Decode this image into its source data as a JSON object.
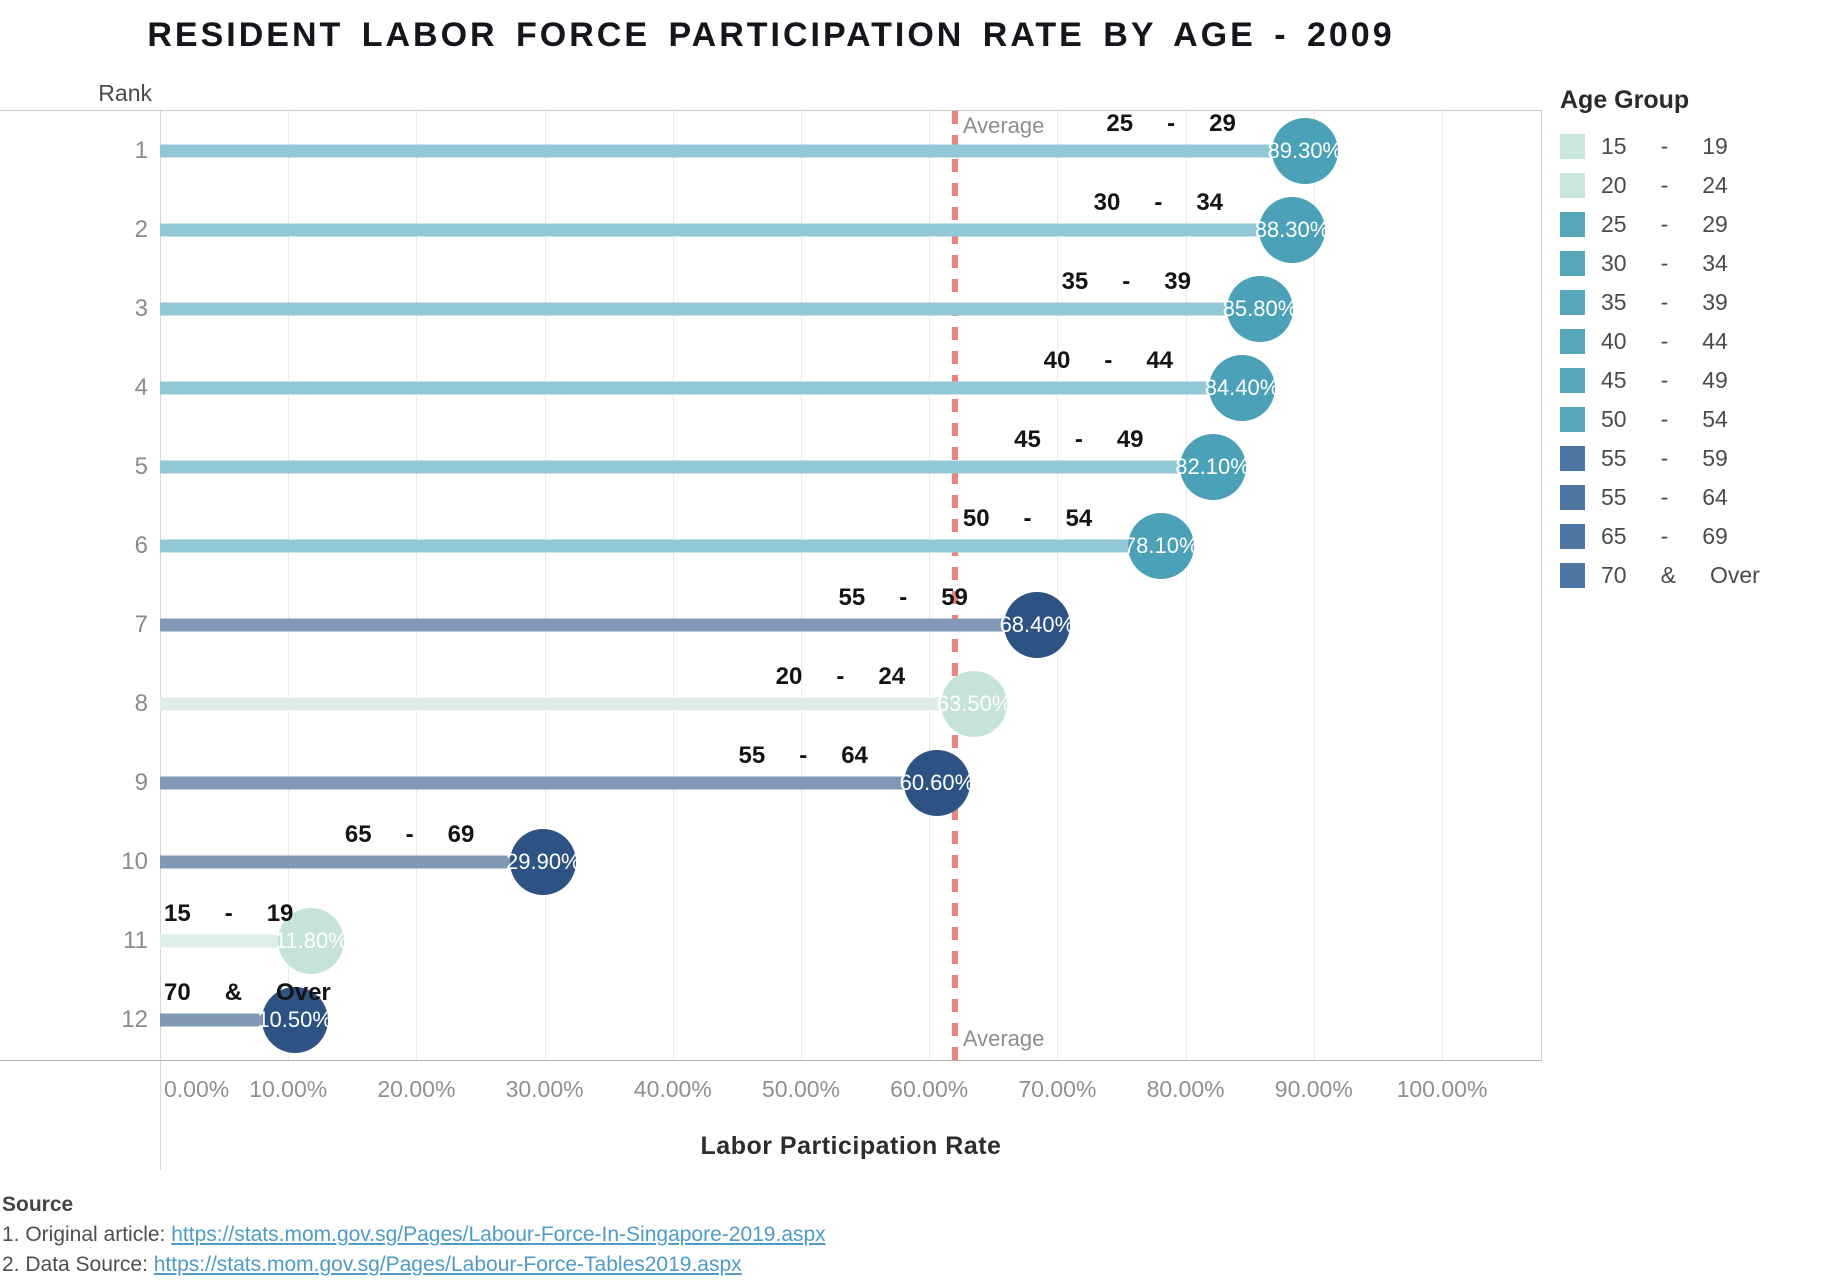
{
  "title": "RESIDENT LABOR FORCE PARTICIPATION RATE BY AGE - 2009",
  "y_axis_title": "Rank",
  "x_axis_title": "Labor Participation Rate",
  "average": {
    "label": "Average",
    "value_pct": 62.0
  },
  "x_ticks": [
    "0.00%",
    "10.00%",
    "20.00%",
    "30.00%",
    "40.00%",
    "50.00%",
    "60.00%",
    "70.00%",
    "80.00%",
    "90.00%",
    "100.00%"
  ],
  "colors": {
    "teal": {
      "circle": "#4ba1b8",
      "bar": "#92c7d5",
      "legend": "#57a7bb"
    },
    "navy": {
      "circle": "#2d5385",
      "bar": "#8298b6",
      "legend": "#4d77a2"
    },
    "mint": {
      "circle": "#c6e3d9",
      "bar": "#dceee7",
      "legend": "#c9e6dc"
    },
    "average_line": "#ef837b"
  },
  "rows": [
    {
      "rank": "1",
      "age": [
        "25",
        "-",
        "29"
      ],
      "value": 89.3,
      "value_label": "89.30%",
      "group": "teal"
    },
    {
      "rank": "2",
      "age": [
        "30",
        "-",
        "34"
      ],
      "value": 88.3,
      "value_label": "88.30%",
      "group": "teal"
    },
    {
      "rank": "3",
      "age": [
        "35",
        "-",
        "39"
      ],
      "value": 85.8,
      "value_label": "85.80%",
      "group": "teal"
    },
    {
      "rank": "4",
      "age": [
        "40",
        "-",
        "44"
      ],
      "value": 84.4,
      "value_label": "84.40%",
      "group": "teal"
    },
    {
      "rank": "5",
      "age": [
        "45",
        "-",
        "49"
      ],
      "value": 82.1,
      "value_label": "82.10%",
      "group": "teal"
    },
    {
      "rank": "6",
      "age": [
        "50",
        "-",
        "54"
      ],
      "value": 78.1,
      "value_label": "78.10%",
      "group": "teal"
    },
    {
      "rank": "7",
      "age": [
        "55",
        "-",
        "59"
      ],
      "value": 68.4,
      "value_label": "68.40%",
      "group": "navy"
    },
    {
      "rank": "8",
      "age": [
        "20",
        "-",
        "24"
      ],
      "value": 63.5,
      "value_label": "63.50%",
      "group": "mint"
    },
    {
      "rank": "9",
      "age": [
        "55",
        "-",
        "64"
      ],
      "value": 60.6,
      "value_label": "60.60%",
      "group": "navy"
    },
    {
      "rank": "10",
      "age": [
        "65",
        "-",
        "69"
      ],
      "value": 29.9,
      "value_label": "29.90%",
      "group": "navy"
    },
    {
      "rank": "11",
      "age": [
        "15",
        "-",
        "19"
      ],
      "value": 11.8,
      "value_label": "11.80%",
      "group": "mint"
    },
    {
      "rank": "12",
      "age": [
        "70",
        "&",
        "Over"
      ],
      "value": 10.5,
      "value_label": "10.50%",
      "group": "navy"
    }
  ],
  "legend": {
    "title": "Age Group",
    "items": [
      {
        "label": [
          "15",
          "-",
          "19"
        ],
        "group": "mint"
      },
      {
        "label": [
          "20",
          "-",
          "24"
        ],
        "group": "mint"
      },
      {
        "label": [
          "25",
          "-",
          "29"
        ],
        "group": "teal"
      },
      {
        "label": [
          "30",
          "-",
          "34"
        ],
        "group": "teal"
      },
      {
        "label": [
          "35",
          "-",
          "39"
        ],
        "group": "teal"
      },
      {
        "label": [
          "40",
          "-",
          "44"
        ],
        "group": "teal"
      },
      {
        "label": [
          "45",
          "-",
          "49"
        ],
        "group": "teal"
      },
      {
        "label": [
          "50",
          "-",
          "54"
        ],
        "group": "teal"
      },
      {
        "label": [
          "55",
          "-",
          "59"
        ],
        "group": "navy"
      },
      {
        "label": [
          "55",
          "-",
          "64"
        ],
        "group": "navy"
      },
      {
        "label": [
          "65",
          "-",
          "69"
        ],
        "group": "navy"
      },
      {
        "label": [
          "70",
          "&",
          "Over"
        ],
        "group": "navy"
      }
    ]
  },
  "source": {
    "heading": "Source",
    "items": [
      {
        "prefix": "1. Original article: ",
        "link": "https://stats.mom.gov.sg/Pages/Labour-Force-In-Singapore-2019.aspx"
      },
      {
        "prefix": "2. Data Source: ",
        "link": "https://stats.mom.gov.sg/Pages/Labour-Force-Tables2019.aspx"
      }
    ]
  },
  "chart_data": {
    "type": "bar",
    "orientation": "horizontal",
    "title": "RESIDENT LABOR FORCE PARTICIPATION RATE BY AGE - 2009",
    "xlabel": "Labor Participation Rate",
    "ylabel": "Rank",
    "xlim": [
      0,
      107.8
    ],
    "x_tick_step_pct": 10,
    "grid": "vertical-light",
    "legend_position": "right",
    "legend_title": "Age Group",
    "categories": [
      "25 - 29",
      "30 - 34",
      "35 - 39",
      "40 - 44",
      "45 - 49",
      "50 - 54",
      "55 - 59",
      "20 - 24",
      "55 - 64",
      "65 - 69",
      "15 - 19",
      "70 & Over"
    ],
    "ranks": [
      1,
      2,
      3,
      4,
      5,
      6,
      7,
      8,
      9,
      10,
      11,
      12
    ],
    "values_pct": [
      89.3,
      88.3,
      85.8,
      84.4,
      82.1,
      78.1,
      68.4,
      63.5,
      60.6,
      29.9,
      11.8,
      10.5
    ],
    "reference_line": {
      "label": "Average",
      "value_pct": 62.0,
      "style": "dashed",
      "color": "#ef837b"
    },
    "color_groups": {
      "mint": [
        "15 - 19",
        "20 - 24"
      ],
      "teal": [
        "25 - 29",
        "30 - 34",
        "35 - 39",
        "40 - 44",
        "45 - 49",
        "50 - 54"
      ],
      "navy": [
        "55 - 59",
        "55 - 64",
        "65 - 69",
        "70 & Over"
      ]
    }
  }
}
